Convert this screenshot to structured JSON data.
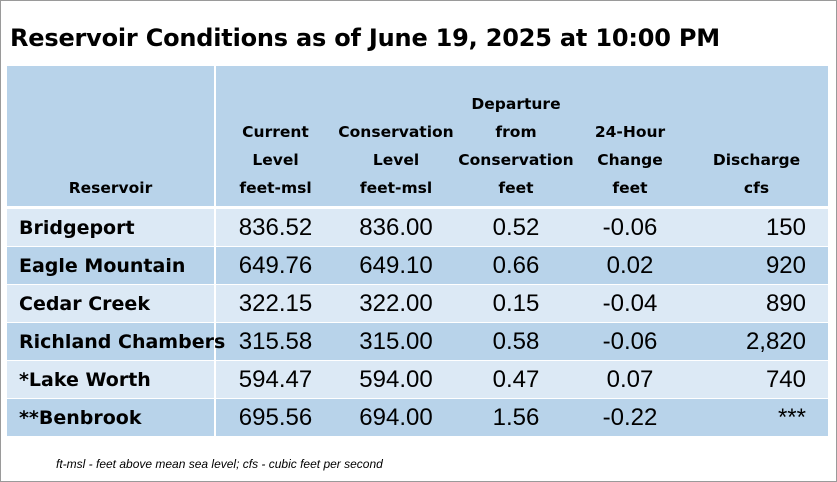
{
  "title": "Reservoir Conditions as of June 19, 2025 at 10:00 PM",
  "headers": {
    "reservoir": [
      "Reservoir"
    ],
    "current_level": [
      "Current",
      "Level",
      "feet-msl"
    ],
    "conservation_level": [
      "Conservation",
      "Level",
      "feet-msl"
    ],
    "departure": [
      "Departure",
      "from",
      "Conservation",
      "feet"
    ],
    "change_24h": [
      "24-Hour",
      "Change",
      "feet"
    ],
    "discharge": [
      "Discharge",
      "cfs"
    ]
  },
  "rows": [
    {
      "name": "Bridgeport",
      "current": "836.52",
      "conservation": "836.00",
      "departure": "0.52",
      "change": "-0.06",
      "discharge": "150"
    },
    {
      "name": "Eagle Mountain",
      "current": "649.76",
      "conservation": "649.10",
      "departure": "0.66",
      "change": "0.02",
      "discharge": "920"
    },
    {
      "name": "Cedar Creek",
      "current": "322.15",
      "conservation": "322.00",
      "departure": "0.15",
      "change": "-0.04",
      "discharge": "890"
    },
    {
      "name": "Richland Chambers",
      "current": "315.58",
      "conservation": "315.00",
      "departure": "0.58",
      "change": "-0.06",
      "discharge": "2,820"
    },
    {
      "name": "*Lake Worth",
      "current": "594.47",
      "conservation": "594.00",
      "departure": "0.47",
      "change": "0.07",
      "discharge": "740"
    },
    {
      "name": "**Benbrook",
      "current": "695.56",
      "conservation": "694.00",
      "departure": "1.56",
      "change": "-0.22",
      "discharge": "***"
    }
  ],
  "footnote": "ft-msl - feet above mean sea level; cfs - cubic feet per second",
  "colors": {
    "header_bg": "#b8d3ea",
    "row_light": "#dce9f5",
    "row_dark": "#b8d3ea"
  }
}
